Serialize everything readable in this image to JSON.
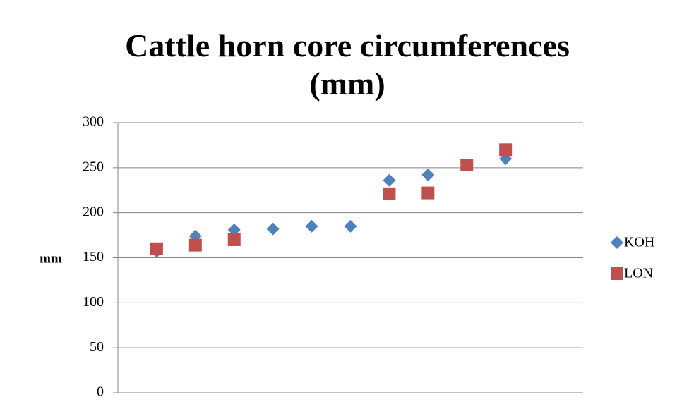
{
  "chart_data": {
    "type": "scatter",
    "title": "Cattle horn core circumferences (mm)",
    "y_label": "mm",
    "xlim": [
      0,
      12
    ],
    "ylim": [
      0,
      300
    ],
    "yticks": [
      0,
      50,
      100,
      150,
      200,
      250,
      300
    ],
    "grid": true,
    "legend": "right",
    "series": [
      {
        "name": "KOH",
        "color": "#4f81bd",
        "marker": "diamond",
        "x": [
          1,
          2,
          3,
          4,
          5,
          6,
          7,
          8,
          9,
          10
        ],
        "values": [
          157,
          174,
          181,
          182,
          185,
          185,
          236,
          242,
          253,
          260
        ]
      },
      {
        "name": "LON",
        "color": "#c0504d",
        "marker": "square",
        "x": [
          1,
          2,
          3,
          4,
          5,
          6,
          7,
          8,
          9,
          10
        ],
        "values": [
          160,
          164,
          170,
          null,
          null,
          null,
          221,
          222,
          253,
          270
        ]
      }
    ]
  }
}
